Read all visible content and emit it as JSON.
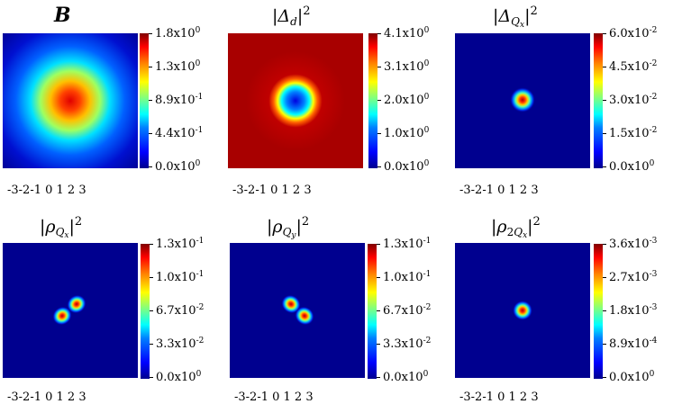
{
  "panels": [
    {
      "id": "B",
      "title": "B",
      "colorbar": [
        {
          "mant": "1.8",
          "exp": "0"
        },
        {
          "mant": "1.3",
          "exp": "0"
        },
        {
          "mant": "8.9",
          "exp": "-1"
        },
        {
          "mant": "4.4",
          "exp": "-1"
        },
        {
          "mant": "0.0",
          "exp": "0"
        }
      ],
      "x_ticks": "-3-2-1 0 1 2 3"
    },
    {
      "id": "delta_d",
      "title": "|Δd|2",
      "colorbar": [
        {
          "mant": "4.1",
          "exp": "0"
        },
        {
          "mant": "3.1",
          "exp": "0"
        },
        {
          "mant": "2.0",
          "exp": "0"
        },
        {
          "mant": "1.0",
          "exp": "0"
        },
        {
          "mant": "0.0",
          "exp": "0"
        }
      ],
      "x_ticks": "-3-2-1 0 1 2 3"
    },
    {
      "id": "delta_qx",
      "title": "|ΔQx|2",
      "colorbar": [
        {
          "mant": "6.0",
          "exp": "-2"
        },
        {
          "mant": "4.5",
          "exp": "-2"
        },
        {
          "mant": "3.0",
          "exp": "-2"
        },
        {
          "mant": "1.5",
          "exp": "-2"
        },
        {
          "mant": "0.0",
          "exp": "0"
        }
      ],
      "x_ticks": "-3-2-1 0 1 2 3"
    },
    {
      "id": "rho_qx",
      "title": "|ρQx|2",
      "colorbar": [
        {
          "mant": "1.3",
          "exp": "-1"
        },
        {
          "mant": "1.0",
          "exp": "-1"
        },
        {
          "mant": "6.7",
          "exp": "-2"
        },
        {
          "mant": "3.3",
          "exp": "-2"
        },
        {
          "mant": "0.0",
          "exp": "0"
        }
      ],
      "x_ticks": "-3-2-1 0 1 2 3"
    },
    {
      "id": "rho_qy",
      "title": "|ρQy|2",
      "colorbar": [
        {
          "mant": "1.3",
          "exp": "-1"
        },
        {
          "mant": "1.0",
          "exp": "-1"
        },
        {
          "mant": "6.7",
          "exp": "-2"
        },
        {
          "mant": "3.3",
          "exp": "-2"
        },
        {
          "mant": "0.0",
          "exp": "0"
        }
      ],
      "x_ticks": "-3-2-1 0 1 2 3"
    },
    {
      "id": "rho_2qx",
      "title": "|ρ2Qx|2",
      "colorbar": [
        {
          "mant": "3.6",
          "exp": "-3"
        },
        {
          "mant": "2.7",
          "exp": "-3"
        },
        {
          "mant": "1.8",
          "exp": "-3"
        },
        {
          "mant": "8.9",
          "exp": "-4"
        },
        {
          "mant": "0.0",
          "exp": "0"
        }
      ],
      "x_ticks": "-3-2-1 0 1 2 3"
    }
  ],
  "colors": {
    "background_blue": "#00008f",
    "background_red": "#a80000"
  }
}
